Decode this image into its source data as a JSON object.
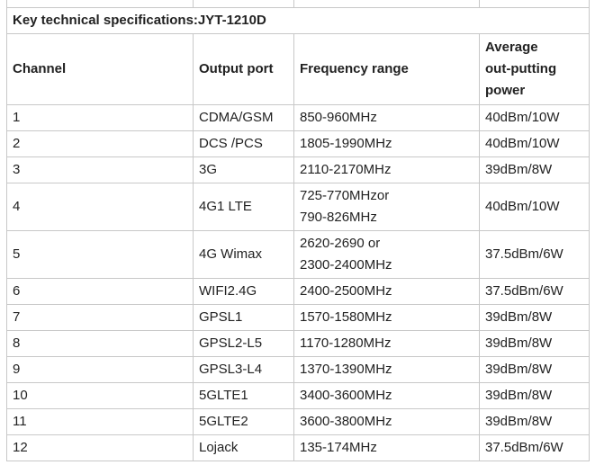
{
  "table": {
    "title": "Key technical  specifications:JYT-1210D",
    "headers": {
      "channel": "Channel",
      "output_port": "Output port",
      "frequency_range": "Frequency range",
      "power_line1": "Average",
      "power_line2": "out-putting",
      "power_line3": "power"
    },
    "rows": [
      {
        "channel": "1",
        "port": "CDMA/GSM",
        "freq1": "850-960MHz",
        "freq2": "",
        "power": "40dBm/10W"
      },
      {
        "channel": "2",
        "port": "DCS /PCS",
        "freq1": "1805-1990MHz",
        "freq2": "",
        "power": "40dBm/10W"
      },
      {
        "channel": "3",
        "port": "3G",
        "freq1": "2110-2170MHz",
        "freq2": "",
        "power": "39dBm/8W"
      },
      {
        "channel": "4",
        "port": "4G1 LTE",
        "freq1": "725-770MHzor",
        "freq2": "790-826MHz",
        "power": "40dBm/10W"
      },
      {
        "channel": "5",
        "port": "4G Wimax",
        "freq1": "2620-2690 or",
        "freq2": "2300-2400MHz",
        "power": "37.5dBm/6W"
      },
      {
        "channel": "6",
        "port": "WIFI2.4G",
        "freq1": "2400-2500MHz",
        "freq2": "",
        "power": "37.5dBm/6W"
      },
      {
        "channel": "7",
        "port": "GPSL1",
        "freq1": "1570-1580MHz",
        "freq2": "",
        "power": "39dBm/8W"
      },
      {
        "channel": "8",
        "port": "GPSL2-L5",
        "freq1": "1170-1280MHz",
        "freq2": "",
        "power": "39dBm/8W"
      },
      {
        "channel": "9",
        "port": "GPSL3-L4",
        "freq1": "1370-1390MHz",
        "freq2": "",
        "power": "39dBm/8W"
      },
      {
        "channel": "10",
        "port": "5GLTE1",
        "freq1": "3400-3600MHz",
        "freq2": "",
        "power": "39dBm/8W"
      },
      {
        "channel": "11",
        "port": "5GLTE2",
        "freq1": "3600-3800MHz",
        "freq2": "",
        "power": "39dBm/8W"
      },
      {
        "channel": "12",
        "port": "Lojack",
        "freq1": "135-174MHz",
        "freq2": "",
        "power": "37.5dBm/6W"
      }
    ]
  }
}
